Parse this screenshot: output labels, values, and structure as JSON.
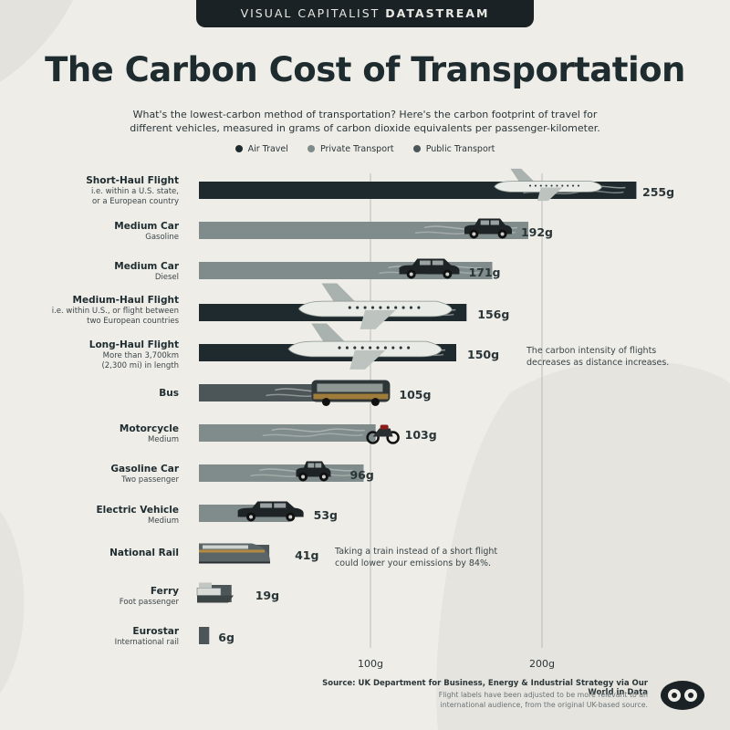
{
  "header": {
    "brand": "VISUAL CAPITALIST",
    "product": "DATASTREAM",
    "title": "The Carbon Cost of Transportation",
    "subtitle": "What's the lowest-carbon method of transportation? Here's the carbon footprint of travel for different vehicles, measured in grams of carbon dioxide equivalents per passenger-kilometer."
  },
  "legend": [
    {
      "label": "Air Travel",
      "color": "#1e2a2e"
    },
    {
      "label": "Private Transport",
      "color": "#7f8c8b"
    },
    {
      "label": "Public Transport",
      "color": "#4c5658"
    }
  ],
  "chart_data": {
    "type": "bar",
    "orientation": "horizontal",
    "xlim": [
      0,
      270
    ],
    "x_ticks": [
      100,
      200
    ],
    "x_tick_labels": [
      "100g",
      "200g"
    ],
    "unit": "g",
    "categories": [
      {
        "name": "Short-Haul Flight",
        "desc": [
          "i.e. within a U.S. state,",
          "or a European country"
        ],
        "value": 255,
        "value_label": "255g",
        "group": "Air Travel",
        "color": "#1e2a2e",
        "icon": "plane-icon"
      },
      {
        "name": "Medium Car",
        "desc": [
          "Gasoline"
        ],
        "value": 192,
        "value_label": "192g",
        "group": "Private Transport",
        "color": "#7f8c8b",
        "icon": "car-icon"
      },
      {
        "name": "Medium Car",
        "desc": [
          "Diesel"
        ],
        "value": 171,
        "value_label": "171g",
        "group": "Private Transport",
        "color": "#7f8c8b",
        "icon": "pickup-truck-icon"
      },
      {
        "name": "Medium-Haul Flight",
        "desc": [
          "i.e. within U.S., or flight between",
          "two European countries"
        ],
        "value": 156,
        "value_label": "156g",
        "group": "Air Travel",
        "color": "#1e2a2e",
        "icon": "plane-icon"
      },
      {
        "name": "Long-Haul Flight",
        "desc": [
          "More than 3,700km",
          "(2,300 mi) in length"
        ],
        "value": 150,
        "value_label": "150g",
        "group": "Air Travel",
        "color": "#1e2a2e",
        "icon": "plane-icon"
      },
      {
        "name": "Bus",
        "desc": [],
        "value": 105,
        "value_label": "105g",
        "group": "Public Transport",
        "color": "#4c5658",
        "icon": "bus-icon"
      },
      {
        "name": "Motorcycle",
        "desc": [
          "Medium"
        ],
        "value": 103,
        "value_label": "103g",
        "group": "Private Transport",
        "color": "#7f8c8b",
        "icon": "motorcycle-icon"
      },
      {
        "name": "Gasoline Car",
        "desc": [
          "Two passenger"
        ],
        "value": 96,
        "value_label": "96g",
        "group": "Private Transport",
        "color": "#7f8c8b",
        "icon": "car-icon"
      },
      {
        "name": "Electric Vehicle",
        "desc": [
          "Medium"
        ],
        "value": 53,
        "value_label": "53g",
        "group": "Private Transport",
        "color": "#7f8c8b",
        "icon": "electric-car-icon"
      },
      {
        "name": "National Rail",
        "desc": [],
        "value": 41,
        "value_label": "41g",
        "group": "Public Transport",
        "color": "#4c5658",
        "icon": "train-icon"
      },
      {
        "name": "Ferry",
        "desc": [
          "Foot passenger"
        ],
        "value": 19,
        "value_label": "19g",
        "group": "Public Transport",
        "color": "#4c5658",
        "icon": "ferry-icon"
      },
      {
        "name": "Eurostar",
        "desc": [
          "International rail"
        ],
        "value": 6,
        "value_label": "6g",
        "group": "Public Transport",
        "color": "#4c5658",
        "icon": ""
      }
    ]
  },
  "annotations": {
    "flights": [
      "The carbon intensity of flights",
      "decreases as distance increases."
    ],
    "train": [
      "Taking a train instead of a short flight",
      "could lower your emissions by 84%."
    ]
  },
  "footer": {
    "source": "Source: UK Department for Business, Energy & Industrial Strategy via Our World in Data",
    "note": [
      "Flight labels have been adjusted to be more relevant to an",
      "international audience, from the original UK-based source."
    ]
  }
}
